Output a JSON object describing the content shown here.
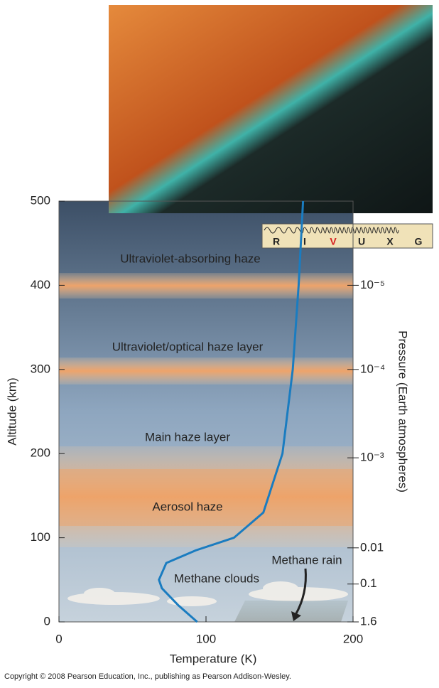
{
  "chart_data": {
    "type": "line",
    "xlabel": "Temperature (K)",
    "ylabel": "Altitude (km)",
    "y2label": "Pressure (Earth atmospheres)",
    "xlim": [
      0,
      200
    ],
    "ylim": [
      0,
      500
    ],
    "xticks": [
      0,
      100,
      200
    ],
    "yticks": [
      0,
      100,
      200,
      300,
      400,
      500
    ],
    "y2ticks": [
      {
        "value": 1e-05,
        "label": "10⁻⁵",
        "altitude": 400
      },
      {
        "value": 0.0001,
        "label": "10⁻⁴",
        "altitude": 300
      },
      {
        "value": 0.001,
        "label": "10⁻³",
        "altitude": 195
      },
      {
        "value": 0.01,
        "label": "0.01",
        "altitude": 88
      },
      {
        "value": 0.1,
        "label": "0.1",
        "altitude": 45
      },
      {
        "value": 1.6,
        "label": "1.6",
        "altitude": 0
      }
    ],
    "series": [
      {
        "color": "#1a7cc0",
        "x": [
          94,
          81,
          70,
          68,
          73,
          93,
          119,
          139,
          152,
          159,
          163,
          166
        ],
        "values": [
          0,
          20,
          40,
          50,
          70,
          85,
          100,
          130,
          200,
          300,
          400,
          500
        ]
      }
    ],
    "annotations": [
      "Ultraviolet-absorbing haze",
      "Ultraviolet/optical haze layer",
      "Main haze layer",
      "Aerosol haze",
      "Methane clouds",
      "Methane rain"
    ],
    "spectrum_bands": [
      "R",
      "I",
      "V",
      "U",
      "X",
      "G"
    ],
    "highlight_band": "V",
    "highlight_color": "#d62020",
    "footer": "Copyright © 2008 Pearson Education, Inc., publishing as Pearson Addison-Wesley."
  }
}
